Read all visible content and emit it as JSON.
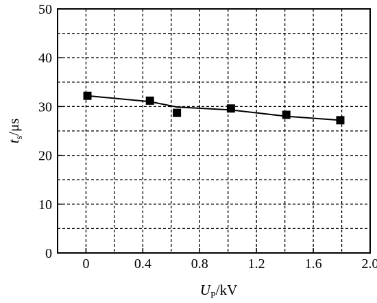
{
  "chart_data": {
    "type": "line",
    "title": "",
    "xlabel": {
      "main": "U",
      "sub": "P",
      "unit": "/kV"
    },
    "ylabel": {
      "main": "t",
      "sub": "s",
      "unit": "/μs"
    },
    "xlim": [
      -0.2,
      2.0
    ],
    "ylim": [
      0,
      50
    ],
    "x_ticks": [
      0,
      0.4,
      0.8,
      1.2,
      1.6,
      2.0
    ],
    "x_tick_labels": [
      "0",
      "0.4",
      "0.8",
      "1.2",
      "1.6",
      "2.0"
    ],
    "y_ticks": [
      0,
      10,
      20,
      30,
      40,
      50
    ],
    "y_tick_labels": [
      "0",
      "10",
      "20",
      "30",
      "40",
      "50"
    ],
    "grid": true,
    "series": [
      {
        "marker": "square",
        "color": "#000000",
        "x": [
          0.01,
          0.45,
          0.64,
          1.02,
          1.41,
          1.79
        ],
        "y": [
          32.2,
          31.2,
          28.7,
          29.6,
          28.3,
          27.2
        ],
        "line_x": [
          0.01,
          0.45,
          0.64,
          1.02,
          1.41,
          1.79
        ],
        "line_y": [
          32.2,
          31.0,
          29.9,
          29.3,
          28.0,
          27.2
        ]
      }
    ]
  }
}
